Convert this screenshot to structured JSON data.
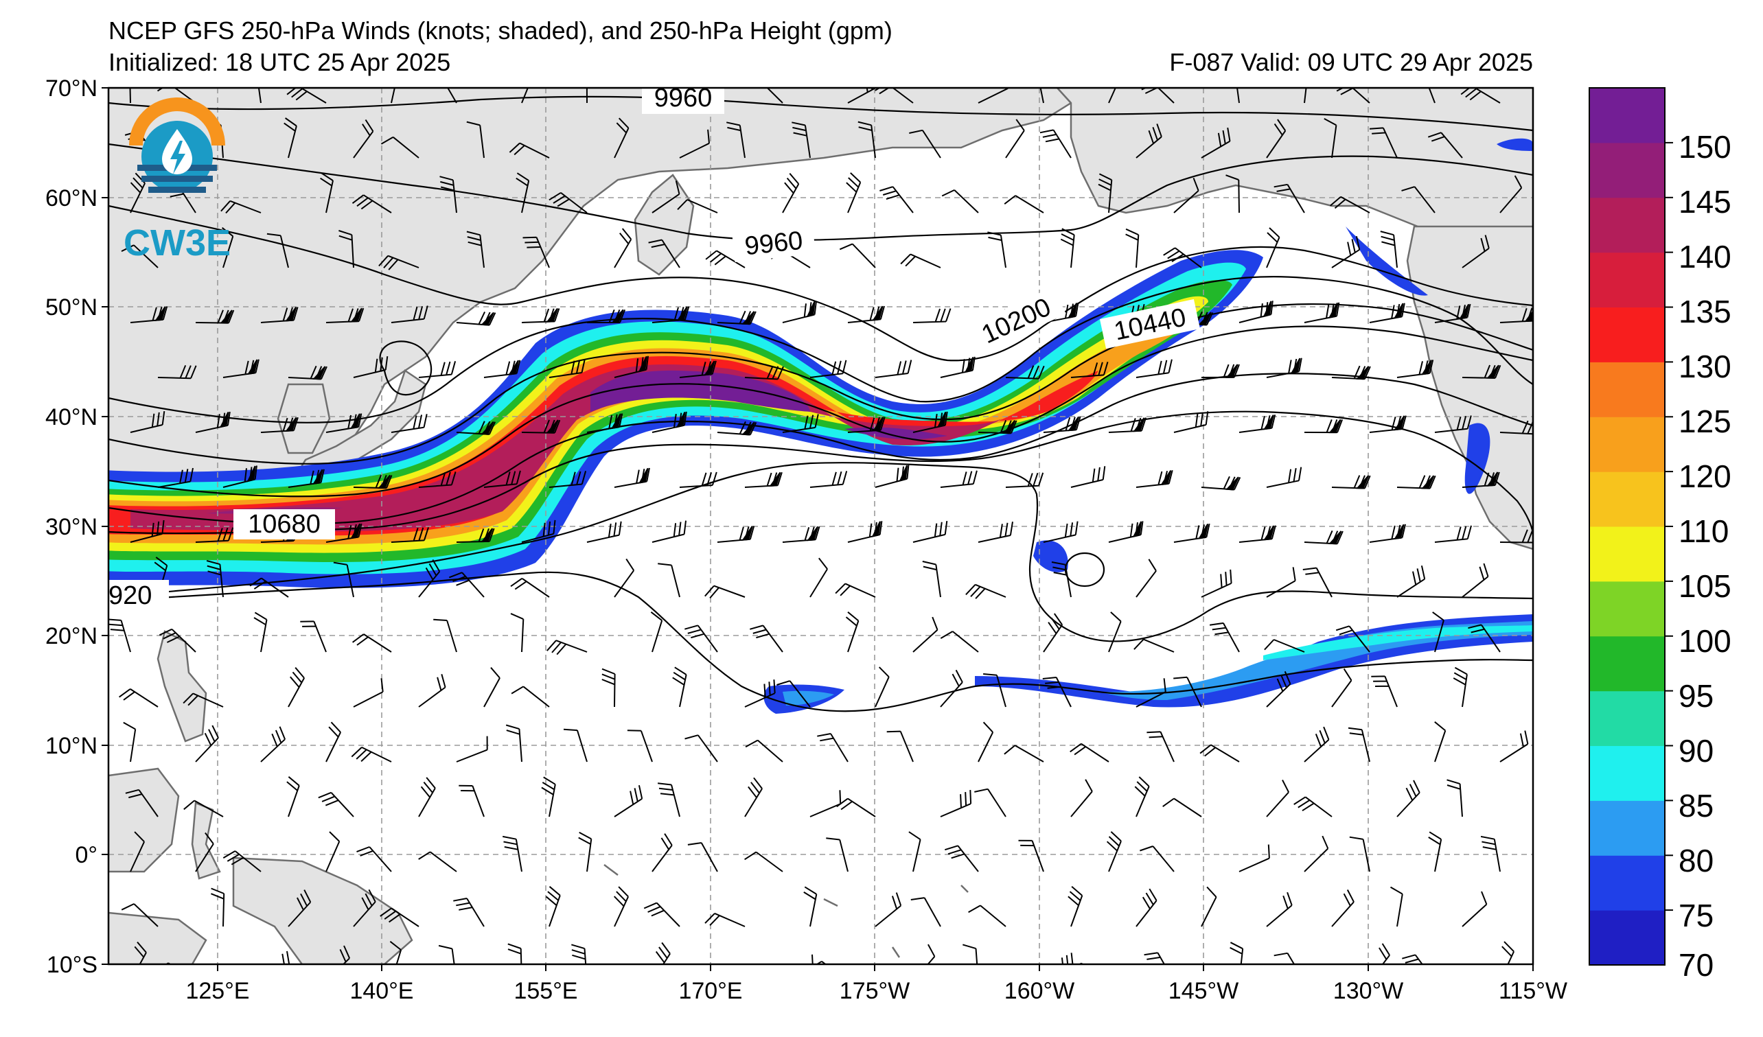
{
  "header": {
    "title": "NCEP GFS 250-hPa Winds (knots; shaded), and 250-hPa Height (gpm)",
    "initialized": "Initialized: 18 UTC 25 Apr 2025",
    "valid": "F-087  Valid: 09 UTC 29 Apr 2025"
  },
  "logo": {
    "text": "CW3E",
    "colors": {
      "orange": "#f7941d",
      "teal": "#1b9bc6",
      "navy": "#1f5c8a"
    }
  },
  "map": {
    "lat_labels": [
      "70°N",
      "60°N",
      "50°N",
      "40°N",
      "30°N",
      "20°N",
      "10°N",
      "0°",
      "10°S"
    ],
    "lon_labels": [
      "125°E",
      "140°E",
      "155°E",
      "170°E",
      "175°W",
      "160°W",
      "145°W",
      "130°W",
      "115°W"
    ],
    "contour_labels": [
      "9960",
      "9960",
      "10200",
      "10440",
      "10680",
      "920"
    ],
    "land_color": "#e3e3e3",
    "coast_color": "#6e6e6e"
  },
  "colorbar": {
    "ticks": [
      "150",
      "145",
      "140",
      "135",
      "130",
      "125",
      "120",
      "110",
      "105",
      "100",
      "95",
      "90",
      "85",
      "80",
      "75",
      "70"
    ],
    "colors_bottom_to_top": [
      "#1f1fc4",
      "#2040e8",
      "#2c9cf2",
      "#1ff0ee",
      "#22dba5",
      "#22b82a",
      "#7ed426",
      "#f2f21a",
      "#f7c31d",
      "#f8a01c",
      "#f87a1e",
      "#f81e1e",
      "#d71e3c",
      "#b31e5a",
      "#931e78",
      "#731e95"
    ]
  }
}
